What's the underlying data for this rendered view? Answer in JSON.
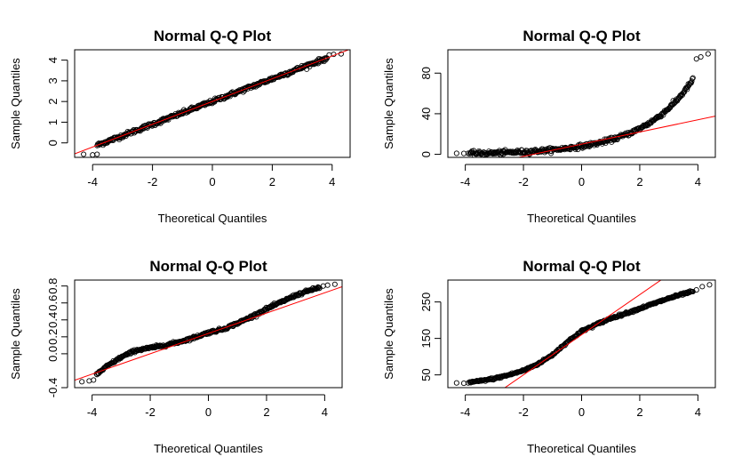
{
  "colors": {
    "points": "#000000",
    "reference_line": "#ff0000",
    "background": "#ffffff"
  },
  "chart_data": [
    {
      "type": "scatter",
      "title": "Normal Q-Q Plot",
      "xlabel": "Theoretical Quantiles",
      "ylabel": "Sample Quantiles",
      "xlim": [
        -4.6,
        4.6
      ],
      "ylim": [
        -0.7,
        4.5
      ],
      "x_ticks": [
        -4,
        -2,
        0,
        2,
        4
      ],
      "y_ticks": [
        0,
        1,
        2,
        3,
        4
      ],
      "curve": {
        "type": "linear",
        "intercept": 2.0,
        "slope": 0.55,
        "noise": 0.05
      },
      "reference_line": {
        "intercept": 2.0,
        "slope": 0.55
      },
      "extremes": [
        {
          "x": -4.3,
          "y": -0.55
        },
        {
          "x": -4.0,
          "y": -0.58
        },
        {
          "x": -3.85,
          "y": -0.55
        },
        {
          "x": 3.9,
          "y": 4.25
        },
        {
          "x": 4.05,
          "y": 4.28
        },
        {
          "x": 4.3,
          "y": 4.3
        }
      ],
      "grid": false,
      "legend": "none"
    },
    {
      "type": "scatter",
      "title": "Normal Q-Q Plot",
      "xlabel": "Theoretical Quantiles",
      "ylabel": "Sample Quantiles",
      "xlim": [
        -4.6,
        4.6
      ],
      "ylim": [
        -3,
        103
      ],
      "x_ticks": [
        -4,
        -2,
        0,
        2,
        4
      ],
      "y_ticks": [
        0,
        40,
        80
      ],
      "curve": {
        "type": "exponential",
        "a": 8.0,
        "b": 0.58,
        "noise": 1.0
      },
      "reference_line": {
        "intercept": 10.0,
        "slope": 6.0
      },
      "extremes": [
        {
          "x": -4.3,
          "y": 1.0
        },
        {
          "x": -4.05,
          "y": 0.9
        },
        {
          "x": -3.9,
          "y": 1.0
        },
        {
          "x": 3.95,
          "y": 94
        },
        {
          "x": 4.1,
          "y": 96
        },
        {
          "x": 4.35,
          "y": 99
        }
      ],
      "grid": false,
      "legend": "none"
    },
    {
      "type": "scatter",
      "title": "Normal Q-Q Plot",
      "xlabel": "Theoretical Quantiles",
      "ylabel": "Sample Quantiles",
      "xlim": [
        -4.6,
        4.6
      ],
      "ylim": [
        -0.4,
        0.87
      ],
      "x_ticks": [
        -4,
        -2,
        0,
        2,
        4
      ],
      "y_ticks": [
        -0.4,
        0.0,
        0.2,
        0.4,
        0.6,
        0.8
      ],
      "y_tick_labels": [
        "-0.4",
        "0.0",
        "0.2",
        "0.4",
        "0.6",
        "0.8"
      ],
      "curve": {
        "type": "piecewise",
        "points": [
          [
            -4.1,
            -0.3
          ],
          [
            -3.9,
            -0.26
          ],
          [
            -3.5,
            -0.15
          ],
          [
            -3.0,
            -0.04
          ],
          [
            -2.5,
            0.04
          ],
          [
            -2.0,
            0.07
          ],
          [
            -1.5,
            0.1
          ],
          [
            -1.0,
            0.14
          ],
          [
            -0.5,
            0.19
          ],
          [
            0.0,
            0.25
          ],
          [
            0.5,
            0.29
          ],
          [
            1.0,
            0.36
          ],
          [
            1.5,
            0.44
          ],
          [
            2.0,
            0.53
          ],
          [
            2.5,
            0.61
          ],
          [
            3.0,
            0.69
          ],
          [
            3.5,
            0.75
          ],
          [
            4.0,
            0.8
          ]
        ],
        "noise": 0.008
      },
      "reference_line": {
        "intercept": 0.24,
        "slope": 0.12
      },
      "extremes": [
        {
          "x": -4.35,
          "y": -0.33
        },
        {
          "x": -4.1,
          "y": -0.32
        },
        {
          "x": -3.95,
          "y": -0.31
        },
        {
          "x": 3.95,
          "y": 0.8
        },
        {
          "x": 4.1,
          "y": 0.81
        },
        {
          "x": 4.35,
          "y": 0.82
        }
      ],
      "grid": false,
      "legend": "none"
    },
    {
      "type": "scatter",
      "title": "Normal Q-Q Plot",
      "xlabel": "Theoretical Quantiles",
      "ylabel": "Sample Quantiles",
      "xlim": [
        -4.6,
        4.6
      ],
      "ylim": [
        15,
        310
      ],
      "x_ticks": [
        -4,
        -2,
        0,
        2,
        4
      ],
      "y_ticks": [
        50,
        150,
        250
      ],
      "curve": {
        "type": "piecewise",
        "points": [
          [
            -4.0,
            28
          ],
          [
            -3.5,
            33
          ],
          [
            -3.0,
            40
          ],
          [
            -2.5,
            50
          ],
          [
            -2.0,
            62
          ],
          [
            -1.5,
            80
          ],
          [
            -1.0,
            105
          ],
          [
            -0.5,
            140
          ],
          [
            0.0,
            170
          ],
          [
            0.5,
            188
          ],
          [
            1.0,
            205
          ],
          [
            1.5,
            218
          ],
          [
            2.0,
            232
          ],
          [
            2.5,
            246
          ],
          [
            3.0,
            260
          ],
          [
            3.5,
            272
          ],
          [
            4.0,
            282
          ]
        ],
        "noise": 1.5
      },
      "reference_line": {
        "intercept": 160.0,
        "slope": 55.0
      },
      "extremes": [
        {
          "x": -4.3,
          "y": 28
        },
        {
          "x": -4.05,
          "y": 27
        },
        {
          "x": -3.9,
          "y": 28
        },
        {
          "x": 3.95,
          "y": 283
        },
        {
          "x": 4.15,
          "y": 292
        },
        {
          "x": 4.4,
          "y": 297
        }
      ],
      "grid": false,
      "legend": "none"
    }
  ]
}
